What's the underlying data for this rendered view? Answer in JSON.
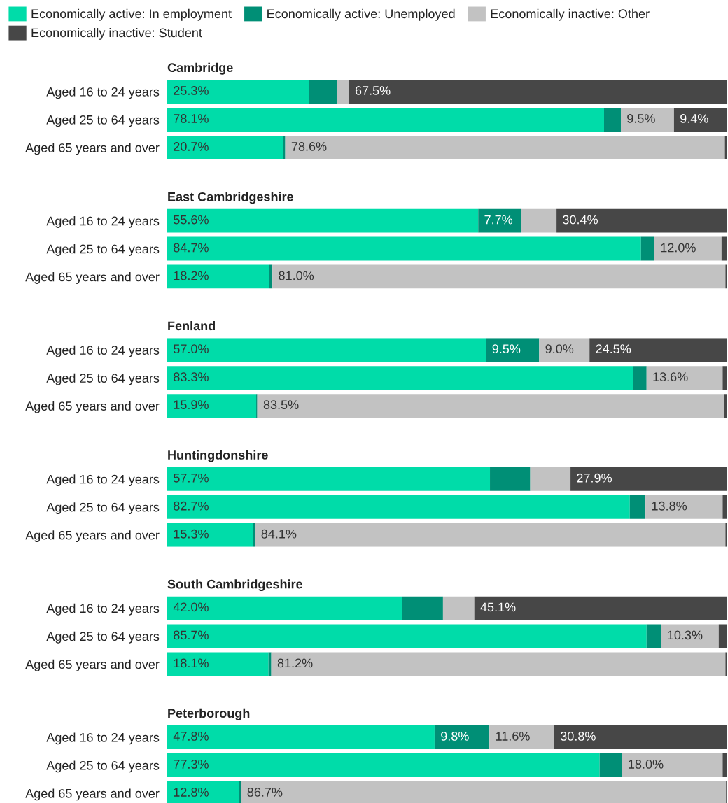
{
  "chart_data": [
    {
      "type": "bar",
      "orientation": "horizontal",
      "stacked": true,
      "title": "Cambridge",
      "categories": [
        "Aged 16 to 24 years",
        "Aged 25 to 64 years",
        "Aged 65 years and over"
      ],
      "xlim": [
        0,
        100
      ],
      "tick_labels": "y",
      "legend": "top",
      "series": [
        {
          "name": "Economically active: In employment",
          "color": "#00dca9",
          "values": [
            25.3,
            78.1,
            20.7
          ],
          "value_labels": [
            "25.3%",
            "78.1%",
            "20.7%"
          ]
        },
        {
          "name": "Economically active: Unemployed",
          "color": "#008f76",
          "values": [
            5.1,
            3.0,
            0.4
          ],
          "value_labels": [
            null,
            null,
            null
          ]
        },
        {
          "name": "Economically inactive: Other",
          "color": "#c2c2c2",
          "values": [
            2.1,
            9.5,
            78.6
          ],
          "value_labels": [
            null,
            "9.5%",
            "78.6%"
          ]
        },
        {
          "name": "Economically inactive: Student",
          "color": "#474747",
          "values": [
            67.5,
            9.4,
            0.3
          ],
          "value_labels": [
            "67.5%",
            "9.4%",
            null
          ]
        }
      ]
    },
    {
      "type": "bar",
      "orientation": "horizontal",
      "stacked": true,
      "title": "East Cambridgeshire",
      "categories": [
        "Aged 16 to 24 years",
        "Aged 25 to 64 years",
        "Aged 65 years and over"
      ],
      "xlim": [
        0,
        100
      ],
      "tick_labels": "y",
      "series": [
        {
          "color": "#00dca9",
          "values": [
            55.6,
            84.7,
            18.2
          ],
          "value_labels": [
            "55.6%",
            "84.7%",
            "18.2%"
          ]
        },
        {
          "color": "#008f76",
          "values": [
            7.7,
            2.4,
            0.6
          ],
          "value_labels": [
            "7.7%",
            null,
            null
          ]
        },
        {
          "color": "#c2c2c2",
          "values": [
            6.3,
            12.0,
            81.0
          ],
          "value_labels": [
            null,
            "12.0%",
            "81.0%"
          ]
        },
        {
          "color": "#474747",
          "values": [
            30.4,
            0.9,
            0.2
          ],
          "value_labels": [
            "30.4%",
            null,
            null
          ]
        }
      ]
    },
    {
      "type": "bar",
      "orientation": "horizontal",
      "stacked": true,
      "title": "Fenland",
      "categories": [
        "Aged 16 to 24 years",
        "Aged 25 to 64 years",
        "Aged 65 years and over"
      ],
      "xlim": [
        0,
        100
      ],
      "tick_labels": "y",
      "series": [
        {
          "color": "#00dca9",
          "values": [
            57.0,
            83.3,
            15.9
          ],
          "value_labels": [
            "57.0%",
            "83.3%",
            "15.9%"
          ]
        },
        {
          "color": "#008f76",
          "values": [
            9.5,
            2.4,
            0.2
          ],
          "value_labels": [
            "9.5%",
            null,
            null
          ]
        },
        {
          "color": "#c2c2c2",
          "values": [
            9.0,
            13.6,
            83.5
          ],
          "value_labels": [
            "9.0%",
            "13.6%",
            "83.5%"
          ]
        },
        {
          "color": "#474747",
          "values": [
            24.5,
            0.7,
            0.4
          ],
          "value_labels": [
            "24.5%",
            null,
            null
          ]
        }
      ]
    },
    {
      "type": "bar",
      "orientation": "horizontal",
      "stacked": true,
      "title": "Huntingdonshire",
      "categories": [
        "Aged 16 to 24 years",
        "Aged 25 to 64 years",
        "Aged 65 years and over"
      ],
      "xlim": [
        0,
        100
      ],
      "tick_labels": "y",
      "series": [
        {
          "color": "#00dca9",
          "values": [
            57.7,
            82.7,
            15.3
          ],
          "value_labels": [
            "57.7%",
            "82.7%",
            "15.3%"
          ]
        },
        {
          "color": "#008f76",
          "values": [
            7.2,
            2.8,
            0.4
          ],
          "value_labels": [
            null,
            null,
            null
          ]
        },
        {
          "color": "#c2c2c2",
          "values": [
            7.2,
            13.8,
            84.1
          ],
          "value_labels": [
            null,
            "13.8%",
            "84.1%"
          ]
        },
        {
          "color": "#474747",
          "values": [
            27.9,
            0.7,
            0.2
          ],
          "value_labels": [
            "27.9%",
            null,
            null
          ]
        }
      ]
    },
    {
      "type": "bar",
      "orientation": "horizontal",
      "stacked": true,
      "title": "South Cambridgeshire",
      "categories": [
        "Aged 16 to 24 years",
        "Aged 25 to 64 years",
        "Aged 65 years and over"
      ],
      "xlim": [
        0,
        100
      ],
      "tick_labels": "y",
      "series": [
        {
          "color": "#00dca9",
          "values": [
            42.0,
            85.7,
            18.1
          ],
          "value_labels": [
            "42.0%",
            "85.7%",
            "18.1%"
          ]
        },
        {
          "color": "#008f76",
          "values": [
            7.3,
            2.6,
            0.5
          ],
          "value_labels": [
            null,
            null,
            null
          ]
        },
        {
          "color": "#c2c2c2",
          "values": [
            5.6,
            10.3,
            81.2
          ],
          "value_labels": [
            null,
            "10.3%",
            "81.2%"
          ]
        },
        {
          "color": "#474747",
          "values": [
            45.1,
            1.4,
            0.2
          ],
          "value_labels": [
            "45.1%",
            null,
            null
          ]
        }
      ]
    },
    {
      "type": "bar",
      "orientation": "horizontal",
      "stacked": true,
      "title": "Peterborough",
      "categories": [
        "Aged 16 to 24 years",
        "Aged 25 to 64 years",
        "Aged 65 years and over"
      ],
      "xlim": [
        0,
        100
      ],
      "tick_labels": "y",
      "series": [
        {
          "color": "#00dca9",
          "values": [
            47.8,
            77.3,
            12.8
          ],
          "value_labels": [
            "47.8%",
            "77.3%",
            "12.8%"
          ]
        },
        {
          "color": "#008f76",
          "values": [
            9.8,
            4.0,
            0.4
          ],
          "value_labels": [
            "9.8%",
            null,
            null
          ]
        },
        {
          "color": "#c2c2c2",
          "values": [
            11.6,
            18.0,
            86.7
          ],
          "value_labels": [
            "11.6%",
            "18.0%",
            "86.7%"
          ]
        },
        {
          "color": "#474747",
          "values": [
            30.8,
            0.7,
            0.1
          ],
          "value_labels": [
            "30.8%",
            null,
            null
          ]
        }
      ]
    }
  ]
}
